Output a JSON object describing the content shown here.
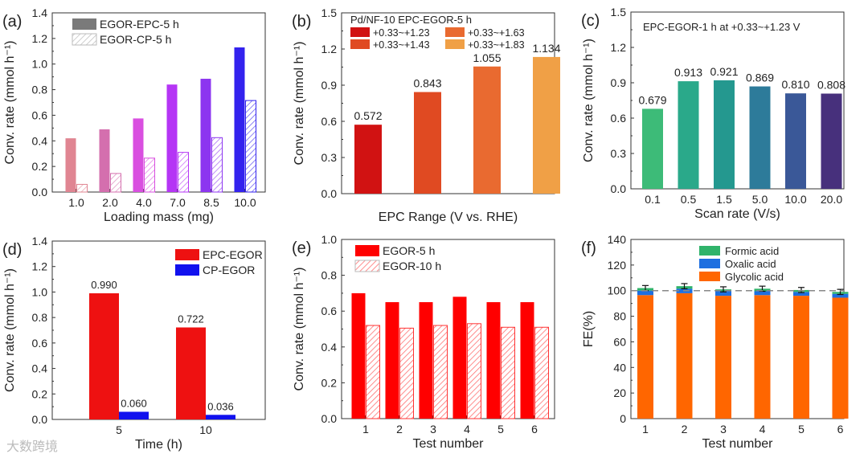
{
  "watermark": "大数跨境",
  "chart_data": [
    {
      "panel": "(a)",
      "type": "bar",
      "xlabel": "Loading mass (mg)",
      "ylabel": "Conv. rate (mmol h⁻¹)",
      "ylim": [
        0,
        1.4
      ],
      "yticks": [
        "0.0",
        "0.2",
        "0.4",
        "0.6",
        "0.8",
        "1.0",
        "1.2",
        "1.4"
      ],
      "categories": [
        "1.0",
        "2.0",
        "4.0",
        "7.0",
        "8.5",
        "10.0"
      ],
      "legend_position": "top-left",
      "series": [
        {
          "name": "EGOR-EPC-5 h",
          "style": "solid",
          "legend_color": "#7a7a7a",
          "values": [
            0.42,
            0.49,
            0.575,
            0.84,
            0.885,
            1.13
          ],
          "colors": [
            "#e08592",
            "#d46fae",
            "#d94fe0",
            "#b535f5",
            "#8c35f0",
            "#3322ee"
          ]
        },
        {
          "name": "EGOR-CP-5 h",
          "style": "hatched",
          "legend_color": "#aaaaaa",
          "values": [
            0.06,
            0.145,
            0.265,
            0.31,
            0.425,
            0.715
          ],
          "colors": [
            "#e08592",
            "#d46fae",
            "#d94fe0",
            "#b535f5",
            "#8c35f0",
            "#3322ee"
          ]
        }
      ]
    },
    {
      "panel": "(b)",
      "type": "bar",
      "xlabel": "EPC Range (V vs. RHE)",
      "ylabel": "Conv. rate (mmol h⁻¹)",
      "ylim": [
        0,
        1.5
      ],
      "yticks": [
        "0.0",
        "0.3",
        "0.6",
        "0.9",
        "1.2",
        "1.5"
      ],
      "categories": [
        "+0.33~+1.23",
        "+0.33~+1.43",
        "+0.33~+1.63",
        "+0.33~+1.83"
      ],
      "show_xticklabels": false,
      "legend_title": "Pd/NF-10 EPC-EGOR-5 h",
      "legend_position": "top-left",
      "series": [
        {
          "name": "Conv. rate",
          "style": "solid",
          "values": [
            0.572,
            0.843,
            1.055,
            1.134
          ],
          "labels": [
            "0.572",
            "0.843",
            "1.055",
            "1.134"
          ],
          "colors": [
            "#d11212",
            "#e04a22",
            "#e96a30",
            "#f0a046"
          ]
        }
      ]
    },
    {
      "panel": "(c)",
      "type": "bar",
      "xlabel": "Scan rate (V/s)",
      "ylabel": "Conv. rate (mmol h⁻¹)",
      "ylim": [
        0,
        1.5
      ],
      "yticks": [
        "0.0",
        "0.3",
        "0.6",
        "0.9",
        "1.2",
        "1.5"
      ],
      "categories": [
        "0.1",
        "0.5",
        "1.5",
        "5.0",
        "10.0",
        "20.0"
      ],
      "legend_title": "EPC-EGOR-1 h at +0.33~+1.23 V",
      "series": [
        {
          "name": "Conv. rate",
          "style": "solid",
          "values": [
            0.679,
            0.913,
            0.921,
            0.869,
            0.81,
            0.808
          ],
          "labels": [
            "0.679",
            "0.913",
            "0.921",
            "0.869",
            "0.810",
            "0.808"
          ],
          "colors": [
            "#3dbb78",
            "#2aa98a",
            "#24988f",
            "#2d7b9a",
            "#3a5898",
            "#47307c"
          ]
        }
      ]
    },
    {
      "panel": "(d)",
      "type": "bar",
      "xlabel": "Time (h)",
      "ylabel": "Conv. rate (mmol h⁻¹)",
      "ylim": [
        0,
        1.4
      ],
      "yticks": [
        "0.0",
        "0.2",
        "0.4",
        "0.6",
        "0.8",
        "1.0",
        "1.2",
        "1.4"
      ],
      "categories": [
        "5",
        "10"
      ],
      "legend_position": "top-right",
      "series": [
        {
          "name": "EPC-EGOR",
          "style": "solid",
          "legend_color": "#ee1111",
          "values": [
            0.99,
            0.722
          ],
          "labels": [
            "0.990",
            "0.722"
          ],
          "colors": [
            "#ee1111",
            "#ee1111"
          ]
        },
        {
          "name": "CP-EGOR",
          "style": "solid",
          "legend_color": "#1111ee",
          "values": [
            0.06,
            0.036
          ],
          "labels": [
            "0.060",
            "0.036"
          ],
          "colors": [
            "#1111ee",
            "#1111ee"
          ]
        }
      ]
    },
    {
      "panel": "(e)",
      "type": "bar",
      "xlabel": "Test number",
      "ylabel": "Conv. rate (mmol h⁻¹)",
      "ylim": [
        0,
        1.0
      ],
      "yticks": [
        "0.0",
        "0.2",
        "0.4",
        "0.6",
        "0.8",
        "1.0"
      ],
      "categories": [
        "1",
        "2",
        "3",
        "4",
        "5",
        "6"
      ],
      "legend_position": "top-left",
      "series": [
        {
          "name": "EGOR-5 h",
          "style": "solid",
          "legend_color": "#ff0000",
          "values": [
            0.7,
            0.65,
            0.65,
            0.68,
            0.65,
            0.65
          ],
          "colors": [
            "#ff0000",
            "#ff0000",
            "#ff0000",
            "#ff0000",
            "#ff0000",
            "#ff0000"
          ]
        },
        {
          "name": "EGOR-10 h",
          "style": "hatched",
          "legend_color": "#ff3333",
          "values": [
            0.52,
            0.505,
            0.52,
            0.53,
            0.51,
            0.51
          ],
          "colors": [
            "#ff3333",
            "#ff3333",
            "#ff3333",
            "#ff3333",
            "#ff3333",
            "#ff3333"
          ]
        }
      ]
    },
    {
      "panel": "(f)",
      "type": "stacked-bar",
      "xlabel": "Test number",
      "ylabel": "FE(%)",
      "ylim": [
        0,
        140
      ],
      "yticks": [
        "0",
        "20",
        "40",
        "60",
        "80",
        "100",
        "120",
        "140"
      ],
      "categories": [
        "1",
        "2",
        "3",
        "4",
        "5",
        "6"
      ],
      "reference_line": 100,
      "legend_position": "top-center",
      "series": [
        {
          "name": "Glycolic acid",
          "color": "#ff6600",
          "values": [
            96.5,
            98,
            96,
            96.5,
            96,
            94.5
          ]
        },
        {
          "name": "Oxalic acid",
          "color": "#1e6fe0",
          "values": [
            3.5,
            3.5,
            3.5,
            3,
            3,
            3
          ]
        },
        {
          "name": "Formic acid",
          "color": "#2fb36a",
          "values": [
            2,
            2,
            1.5,
            2,
            1.5,
            1.5
          ]
        }
      ],
      "error": [
        2,
        2,
        2,
        2,
        2,
        2
      ]
    }
  ]
}
